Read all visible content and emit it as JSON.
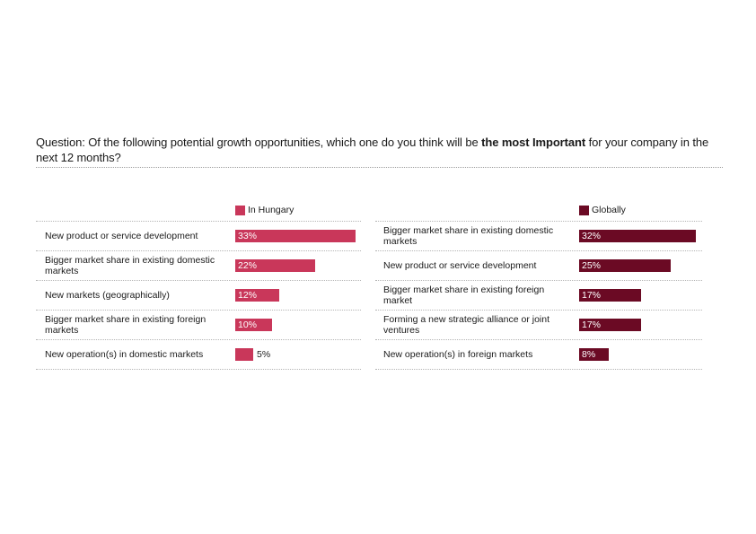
{
  "question": {
    "prefix": "Question: Of the following potential growth opportunities, which one do you think will be ",
    "emphasis": "the most Important",
    "suffix": " for your company in the next 12 months?"
  },
  "colors": {
    "hungary": "#c9375a",
    "global": "#6b0a24"
  },
  "chart_data": [
    {
      "type": "bar",
      "orientation": "horizontal",
      "legend": "In Hungary",
      "xlim": [
        0,
        33
      ],
      "categories": [
        "New product or service development",
        "Bigger market share in existing domestic markets",
        "New markets (geographically)",
        "Bigger market share in existing foreign markets",
        "New operation(s) in domestic markets"
      ],
      "values": [
        33,
        22,
        12,
        10,
        5
      ],
      "value_labels": [
        "33%",
        "22%",
        "12%",
        "10%",
        "5%"
      ]
    },
    {
      "type": "bar",
      "orientation": "horizontal",
      "legend": "Globally",
      "xlim": [
        0,
        32
      ],
      "categories": [
        "Bigger market share in existing domestic markets",
        "New product or service development",
        "Bigger market share in existing foreign market",
        "Forming a new strategic alliance or joint ventures",
        "New operation(s) in foreign markets"
      ],
      "values": [
        32,
        25,
        17,
        17,
        8
      ],
      "value_labels": [
        "32%",
        "25%",
        "17%",
        "17%",
        "8%"
      ]
    }
  ]
}
